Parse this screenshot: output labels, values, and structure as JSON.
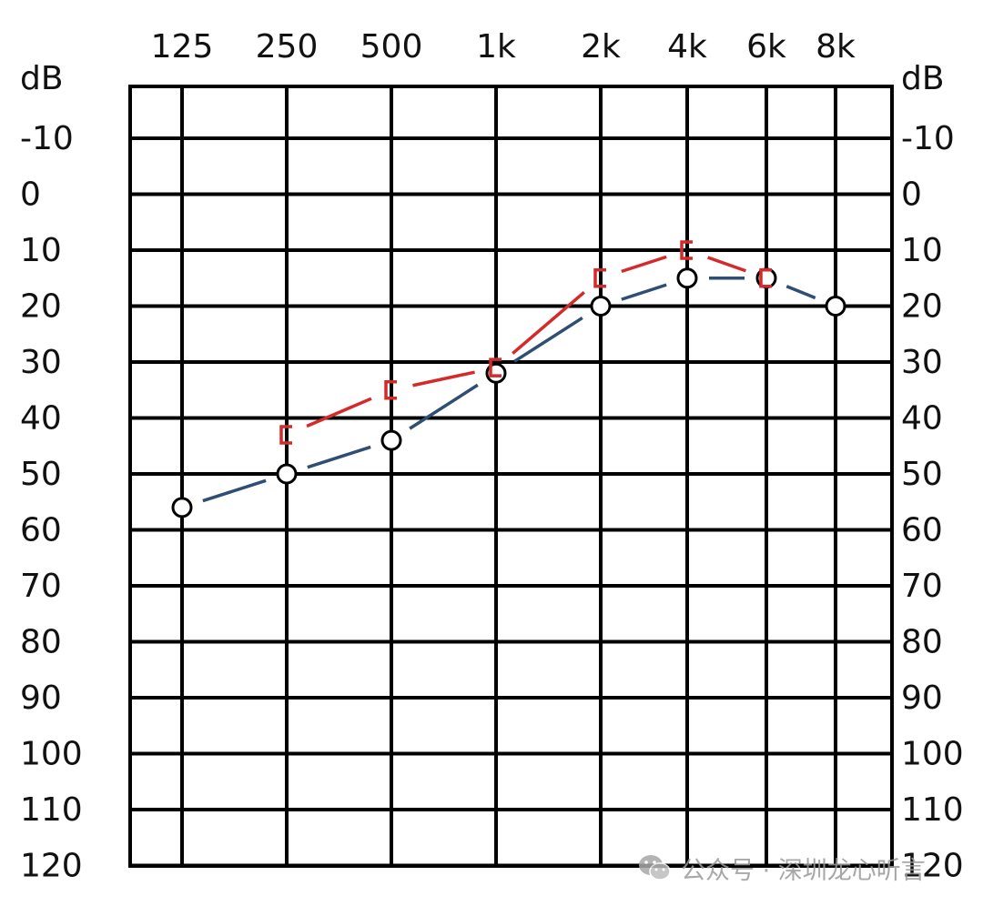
{
  "chart_data": {
    "type": "line",
    "title": "",
    "xlabel": "",
    "ylabel": "dB",
    "y_right_label": "dB",
    "categories": [
      "125",
      "250",
      "500",
      "1k",
      "2k",
      "4k",
      "6k",
      "8k"
    ],
    "yticks": [
      "-10",
      "0",
      "10",
      "20",
      "30",
      "40",
      "50",
      "60",
      "70",
      "80",
      "90",
      "100",
      "110",
      "120"
    ],
    "ylim": [
      -10,
      120
    ],
    "y_inverted": true,
    "grid": true,
    "series": [
      {
        "name": "",
        "color": "#2e4e73",
        "marker": "circle",
        "line_style": "dashed",
        "values": [
          56,
          50,
          44,
          32,
          20,
          15,
          15,
          20
        ]
      },
      {
        "name": "",
        "color": "#d42a2a",
        "marker": "bracket",
        "line_style": "dashed",
        "values": [
          null,
          43,
          35,
          31,
          15,
          10,
          15,
          null
        ]
      }
    ]
  },
  "watermark": {
    "icon": "wechat-icon",
    "text": "公众号 · 深圳龙心听言"
  }
}
